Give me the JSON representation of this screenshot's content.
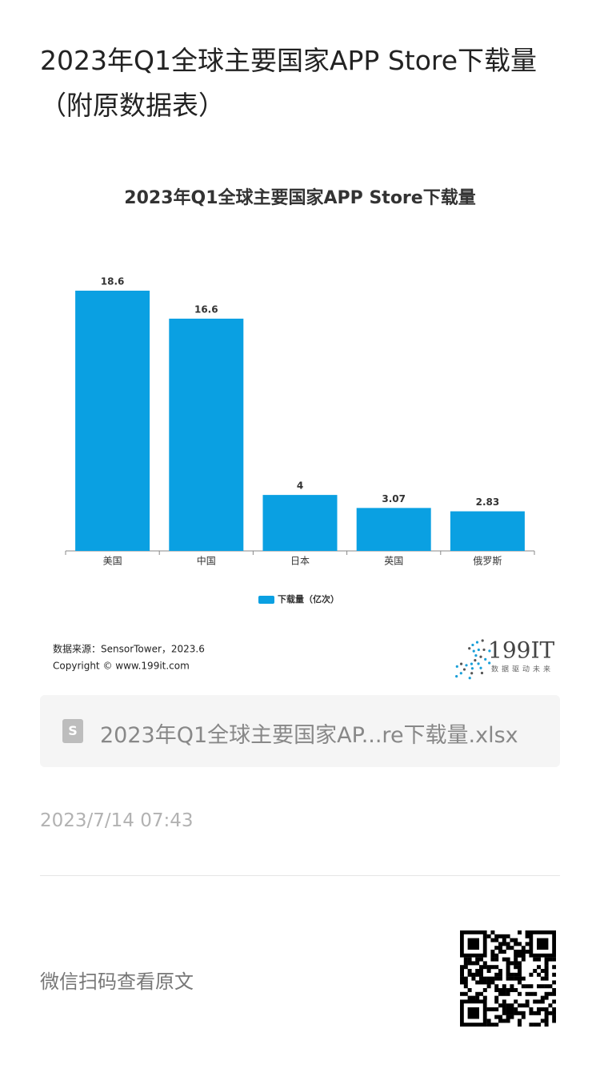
{
  "header": {
    "title": "2023年Q1全球主要国家APP Store下载量（附原数据表）"
  },
  "chart_data": {
    "type": "bar",
    "title": "2023年Q1全球主要国家APP Store下载量",
    "categories": [
      "美国",
      "中国",
      "日本",
      "英国",
      "俄罗斯"
    ],
    "series": [
      {
        "name": "下载量（亿次）",
        "color": "#0aa0e2",
        "values": [
          18.6,
          16.6,
          4,
          3.07,
          2.83
        ]
      }
    ],
    "legend": "bottom"
  },
  "source": {
    "line1": "数据来源：SensorTower，2023.6",
    "line2": "Copyright © www.199it.com"
  },
  "logo": {
    "text": "199IT",
    "tagline": "数据驱动未来"
  },
  "attachment": {
    "filename": "2023年Q1全球主要国家AP...re下载量.xlsx"
  },
  "date": "2023/7/14 07:43",
  "footer": {
    "text": "微信扫码查看原文"
  }
}
